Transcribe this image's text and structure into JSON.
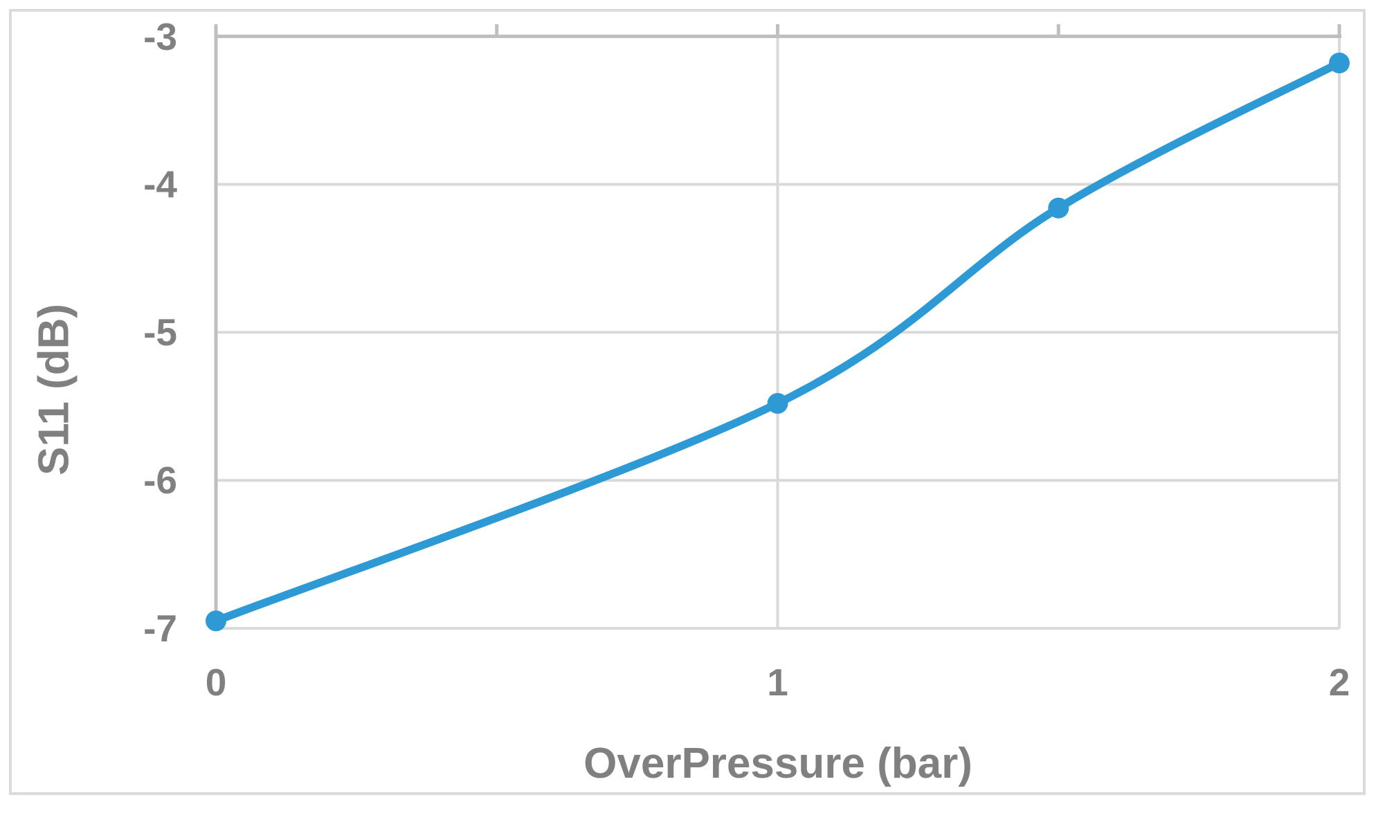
{
  "chart_data": {
    "type": "line",
    "title": "",
    "xlabel": "OverPressure (bar)",
    "ylabel": "S11 (dB)",
    "x": [
      0,
      1,
      1.5,
      2
    ],
    "series": [
      {
        "name": "S11",
        "values": [
          -6.95,
          -5.48,
          -4.16,
          -3.18
        ]
      }
    ],
    "xlim": [
      0,
      2
    ],
    "ylim": [
      -7,
      -3
    ],
    "x_tick_labels": [
      "0",
      "1",
      "2"
    ],
    "x_tick_values": [
      0,
      1,
      2
    ],
    "x_minor_tick_values": [
      0.5,
      1,
      1.5,
      2
    ],
    "x_gridline_values": [
      1,
      2
    ],
    "y_tick_labels": [
      "-3",
      "-4",
      "-5",
      "-6",
      "-7"
    ],
    "y_tick_values": [
      -3,
      -4,
      -5,
      -6,
      -7
    ],
    "grid": "on",
    "legend": "none",
    "smooth_line": true,
    "marker_shape": "circle",
    "colors": {
      "line": "#2D9AD5",
      "marker": "#2D9AD5",
      "gridline": "#D9D9D9",
      "axis_line": "#BFBFBF",
      "text": "#808080",
      "border": "#DBDBDB",
      "background": "#FFFFFF"
    }
  }
}
